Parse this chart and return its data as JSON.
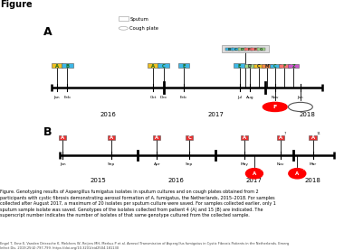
{
  "title": "Figure",
  "caption_line1": "Figure. Genotyping results of Aspergillus fumigatus isolates in sputum cultures and on cough plates obtained from 2",
  "caption_line2": "participants with cystic fibrosis demonstrating aerosol formation of A. fumigatus, the Netherlands, 2015–2018. For samples",
  "caption_line3": "collected after August 2017, a maximum of 20 isolates per sputum culture were saved. For samples collected earlier, only 1",
  "caption_line4": "sputum sample isolate was saved. Genotypes of the isolates collected from patient 4 (A) and 15 (B) are indicated. The",
  "caption_line5": "superscript number indicates the number of isolates of that same genotype cultured from the collected sample.",
  "citation": "Engel T, Erne E, Vanden Driessche K, Melchers W, Reijers MH, Merkus P et al. Aerosol Transmission of Aspergillus fumigatus in Cystic Fibrosis Patients in the Netherlands. Emerg\nInfect Dis. 2019;25(4):797-799. https://doi.org/10.3201/eid2504.181130"
}
